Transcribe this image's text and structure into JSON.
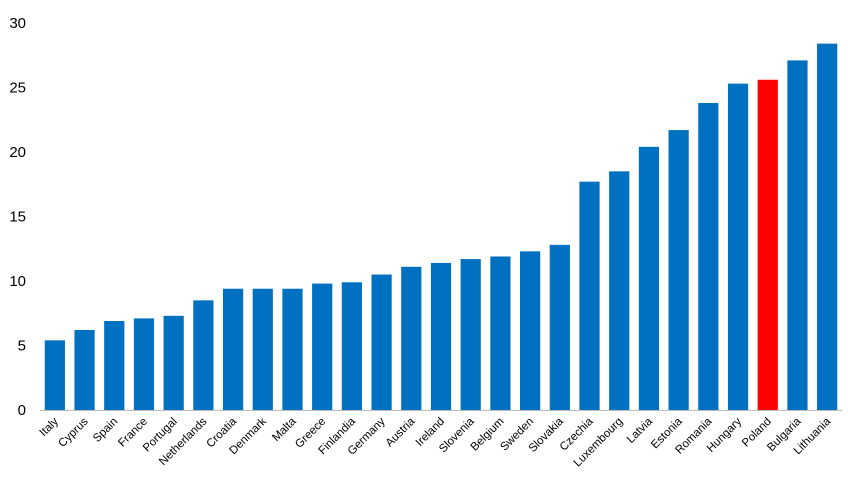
{
  "chart_data": {
    "type": "bar",
    "title": "",
    "xlabel": "",
    "ylabel": "",
    "ylim": [
      0,
      30
    ],
    "yticks": [
      0,
      5,
      10,
      15,
      20,
      25,
      30
    ],
    "grid": false,
    "legend": "none",
    "bar_color": "#0070c0",
    "highlight_color": "#ff0000",
    "highlight_category": "Poland",
    "categories": [
      "Italy",
      "Cyprus",
      "Spain",
      "France",
      "Portugal",
      "Netherlands",
      "Croatia",
      "Denmark",
      "Malta",
      "Greece",
      "Finlandia",
      "Germany",
      "Austria",
      "Ireland",
      "Slovenia",
      "Belgium",
      "Sweden",
      "Slovakia",
      "Czechia",
      "Luxembourg",
      "Latvia",
      "Estonia",
      "Romania",
      "Hungary",
      "Poland",
      "Bulgaria",
      "Lithuania"
    ],
    "values": [
      5.4,
      6.2,
      6.9,
      7.1,
      7.3,
      8.5,
      9.4,
      9.4,
      9.4,
      9.8,
      9.9,
      10.5,
      11.1,
      11.4,
      11.7,
      11.9,
      12.3,
      12.8,
      17.7,
      18.5,
      20.4,
      21.7,
      23.8,
      25.3,
      25.6,
      27.1,
      28.4
    ]
  }
}
